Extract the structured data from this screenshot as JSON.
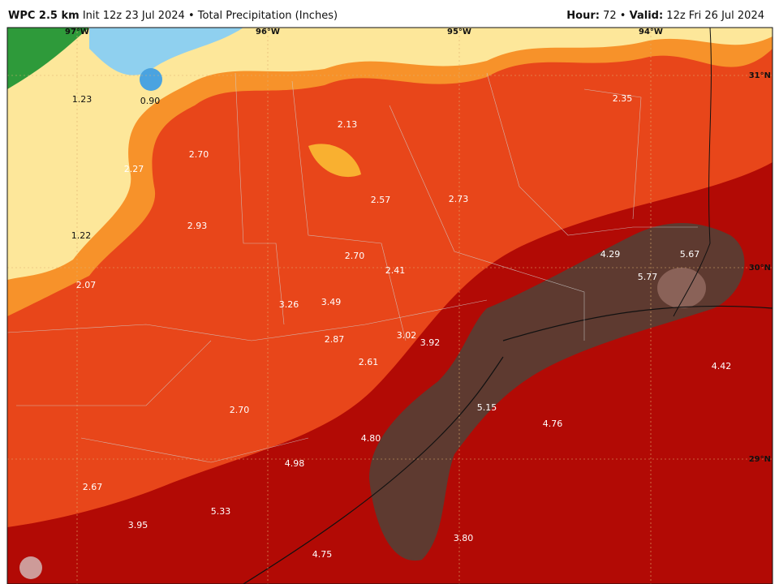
{
  "header": {
    "left": [
      {
        "text": "WPC 2.5 km",
        "bold": true
      },
      {
        "text": "Init 12z 23 Jul 2024",
        "bold": false
      },
      {
        "text": "•",
        "bold": false
      },
      {
        "text": "Total Precipitation (Inches)",
        "bold": false
      }
    ],
    "right": [
      {
        "text": "Hour:",
        "bold": true
      },
      {
        "text": "72",
        "bold": false
      },
      {
        "text": "•",
        "bold": false
      },
      {
        "text": "Valid:",
        "bold": true
      },
      {
        "text": "12z Fri 26 Jul 2024",
        "bold": false
      }
    ]
  },
  "map": {
    "longitudes": [
      "97°W",
      "96°W",
      "95°W",
      "94°W"
    ],
    "latitudes": [
      "31°N",
      "30°N",
      "29°N"
    ],
    "values": [
      "1.23",
      "0.90",
      "2.13",
      "2.35",
      "2.70",
      "2.27",
      "2.57",
      "2.73",
      "2.93",
      "1.22",
      "2.70",
      "2.41",
      "4.29",
      "5.67",
      "5.77",
      "2.07",
      "3.26",
      "3.49",
      "3.02",
      "3.92",
      "2.87",
      "2.61",
      "4.42",
      "5.15",
      "4.76",
      "2.70",
      "4.80",
      "4.98",
      "2.67",
      "5.33",
      "3.95",
      "3.80",
      "4.75"
    ]
  }
}
